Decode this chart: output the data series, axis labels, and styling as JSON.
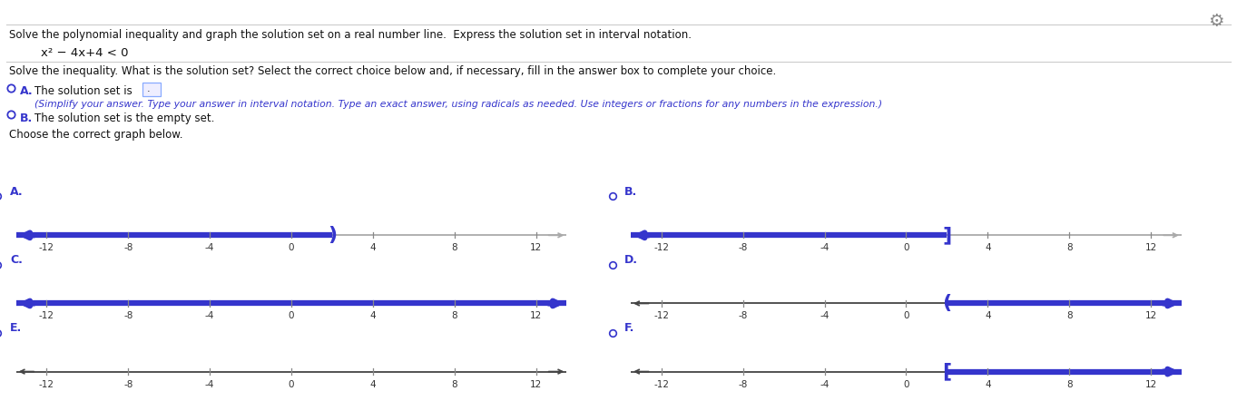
{
  "title_line1": "Solve the polynomial inequality and graph the solution set on a real number line.  Express the solution set in interval notation.",
  "equation": "x² − 4x+4 < 0",
  "question": "Solve the inequality. What is the solution set? Select the correct choice below and, if necessary, fill in the answer box to complete your choice.",
  "option_a_label": "A.",
  "option_a_text": "The solution set is",
  "option_a_note": "(Simplify your answer. Type your answer in interval notation. Type an exact answer, using radicals as needed. Use integers or fractions for any numbers in the expression.)",
  "option_b_label": "B.",
  "option_b_text": "The solution set is the empty set.",
  "choose_text": "Choose the correct graph below.",
  "graph_labels": [
    "A.",
    "B.",
    "C.",
    "D.",
    "E.",
    "F."
  ],
  "xmin": -12,
  "xmax": 12,
  "xticks": [
    -12,
    -8,
    -4,
    0,
    4,
    8,
    12
  ],
  "blue_color": "#3535cc",
  "gray_color": "#aaaaaa",
  "black_color": "#444444",
  "boundary": 2,
  "graphs": [
    {
      "left_blue": true,
      "right_blue": false,
      "open_right": true,
      "bracket_left": false
    },
    {
      "left_blue": true,
      "right_blue": false,
      "open_right": false,
      "bracket_left": false
    },
    {
      "left_blue": true,
      "right_blue": true,
      "open_right": false,
      "bracket_left": false
    },
    {
      "left_blue": false,
      "right_blue": true,
      "open_right": true,
      "bracket_left": false
    },
    {
      "left_blue": false,
      "right_blue": false,
      "open_right": false,
      "bracket_left": false
    },
    {
      "left_blue": false,
      "right_blue": true,
      "open_right": false,
      "bracket_left": false
    }
  ]
}
